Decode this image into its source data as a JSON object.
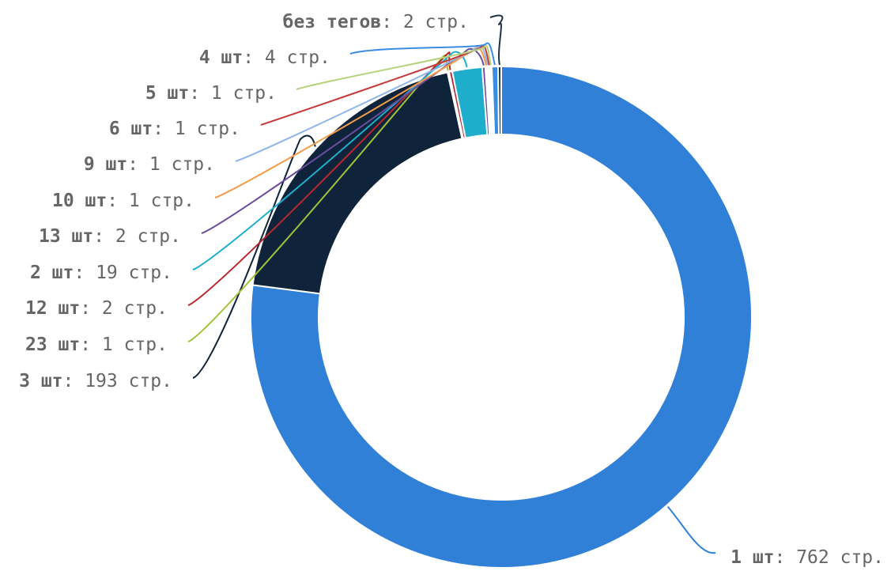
{
  "chart_data": {
    "type": "donut",
    "title": "",
    "unit_label": "стр.",
    "slices": [
      {
        "name": "1 шт",
        "value": 762,
        "color": "#3080d8"
      },
      {
        "name": "3 шт",
        "value": 193,
        "color": "#0f233a"
      },
      {
        "name": "23 шт",
        "value": 1,
        "color": "#a0c23a"
      },
      {
        "name": "12 шт",
        "value": 2,
        "color": "#b7282e"
      },
      {
        "name": "2 шт",
        "value": 19,
        "color": "#1eaecc"
      },
      {
        "name": "13 шт",
        "value": 2,
        "color": "#6a4c9c"
      },
      {
        "name": "10 шт",
        "value": 1,
        "color": "#f39c4a"
      },
      {
        "name": "9 шт",
        "value": 1,
        "color": "#8fb5e8"
      },
      {
        "name": "6 шт",
        "value": 1,
        "color": "#c73a3a"
      },
      {
        "name": "5 шт",
        "value": 1,
        "color": "#b4d27a"
      },
      {
        "name": "4 шт",
        "value": 4,
        "color": "#3a8de0"
      },
      {
        "name": "без тегов",
        "value": 2,
        "color": "#1e3248"
      }
    ],
    "legend": "leader-line labels"
  }
}
